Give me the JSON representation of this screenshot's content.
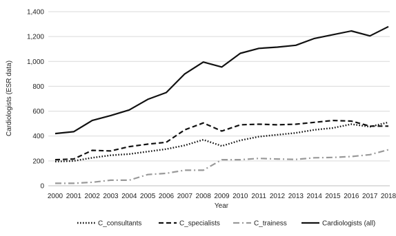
{
  "chart_data": {
    "type": "line",
    "title": "",
    "xlabel": "Year",
    "ylabel": "Cardiologists (ESR data)",
    "ylim": [
      0,
      1400
    ],
    "yticks": [
      "0",
      "200",
      "400",
      "600",
      "800",
      "1,000",
      "1,200",
      "1,400"
    ],
    "ytick_values": [
      0,
      200,
      400,
      600,
      800,
      1000,
      1200,
      1400
    ],
    "x": [
      "2000",
      "2001",
      "2002",
      "2003",
      "2004",
      "2005",
      "2006",
      "2007",
      "2008",
      "2009",
      "2010",
      "2011",
      "2012",
      "2013",
      "2014",
      "2015",
      "2016",
      "2017",
      "2018"
    ],
    "grid": "horizontal",
    "legend_position": "bottom",
    "series": [
      {
        "name": "C_consultants",
        "style": "dotted",
        "color": "#111111",
        "values": [
          195,
          200,
          225,
          245,
          255,
          275,
          295,
          325,
          370,
          320,
          365,
          395,
          410,
          425,
          450,
          465,
          495,
          475,
          510
        ]
      },
      {
        "name": "C_specialists",
        "style": "dashed",
        "color": "#111111",
        "values": [
          210,
          215,
          285,
          280,
          315,
          335,
          350,
          450,
          505,
          440,
          490,
          495,
          490,
          495,
          510,
          525,
          520,
          480,
          480
        ]
      },
      {
        "name": "C_trainess",
        "style": "dash-dot",
        "color": "#999999",
        "values": [
          20,
          20,
          28,
          45,
          45,
          90,
          100,
          125,
          125,
          210,
          210,
          220,
          215,
          212,
          225,
          228,
          235,
          250,
          290
        ]
      },
      {
        "name": "Cardiologists (all)",
        "style": "solid",
        "color": "#111111",
        "values": [
          420,
          435,
          525,
          565,
          610,
          695,
          750,
          900,
          995,
          955,
          1065,
          1105,
          1115,
          1130,
          1185,
          1215,
          1245,
          1205,
          1280
        ]
      }
    ]
  }
}
